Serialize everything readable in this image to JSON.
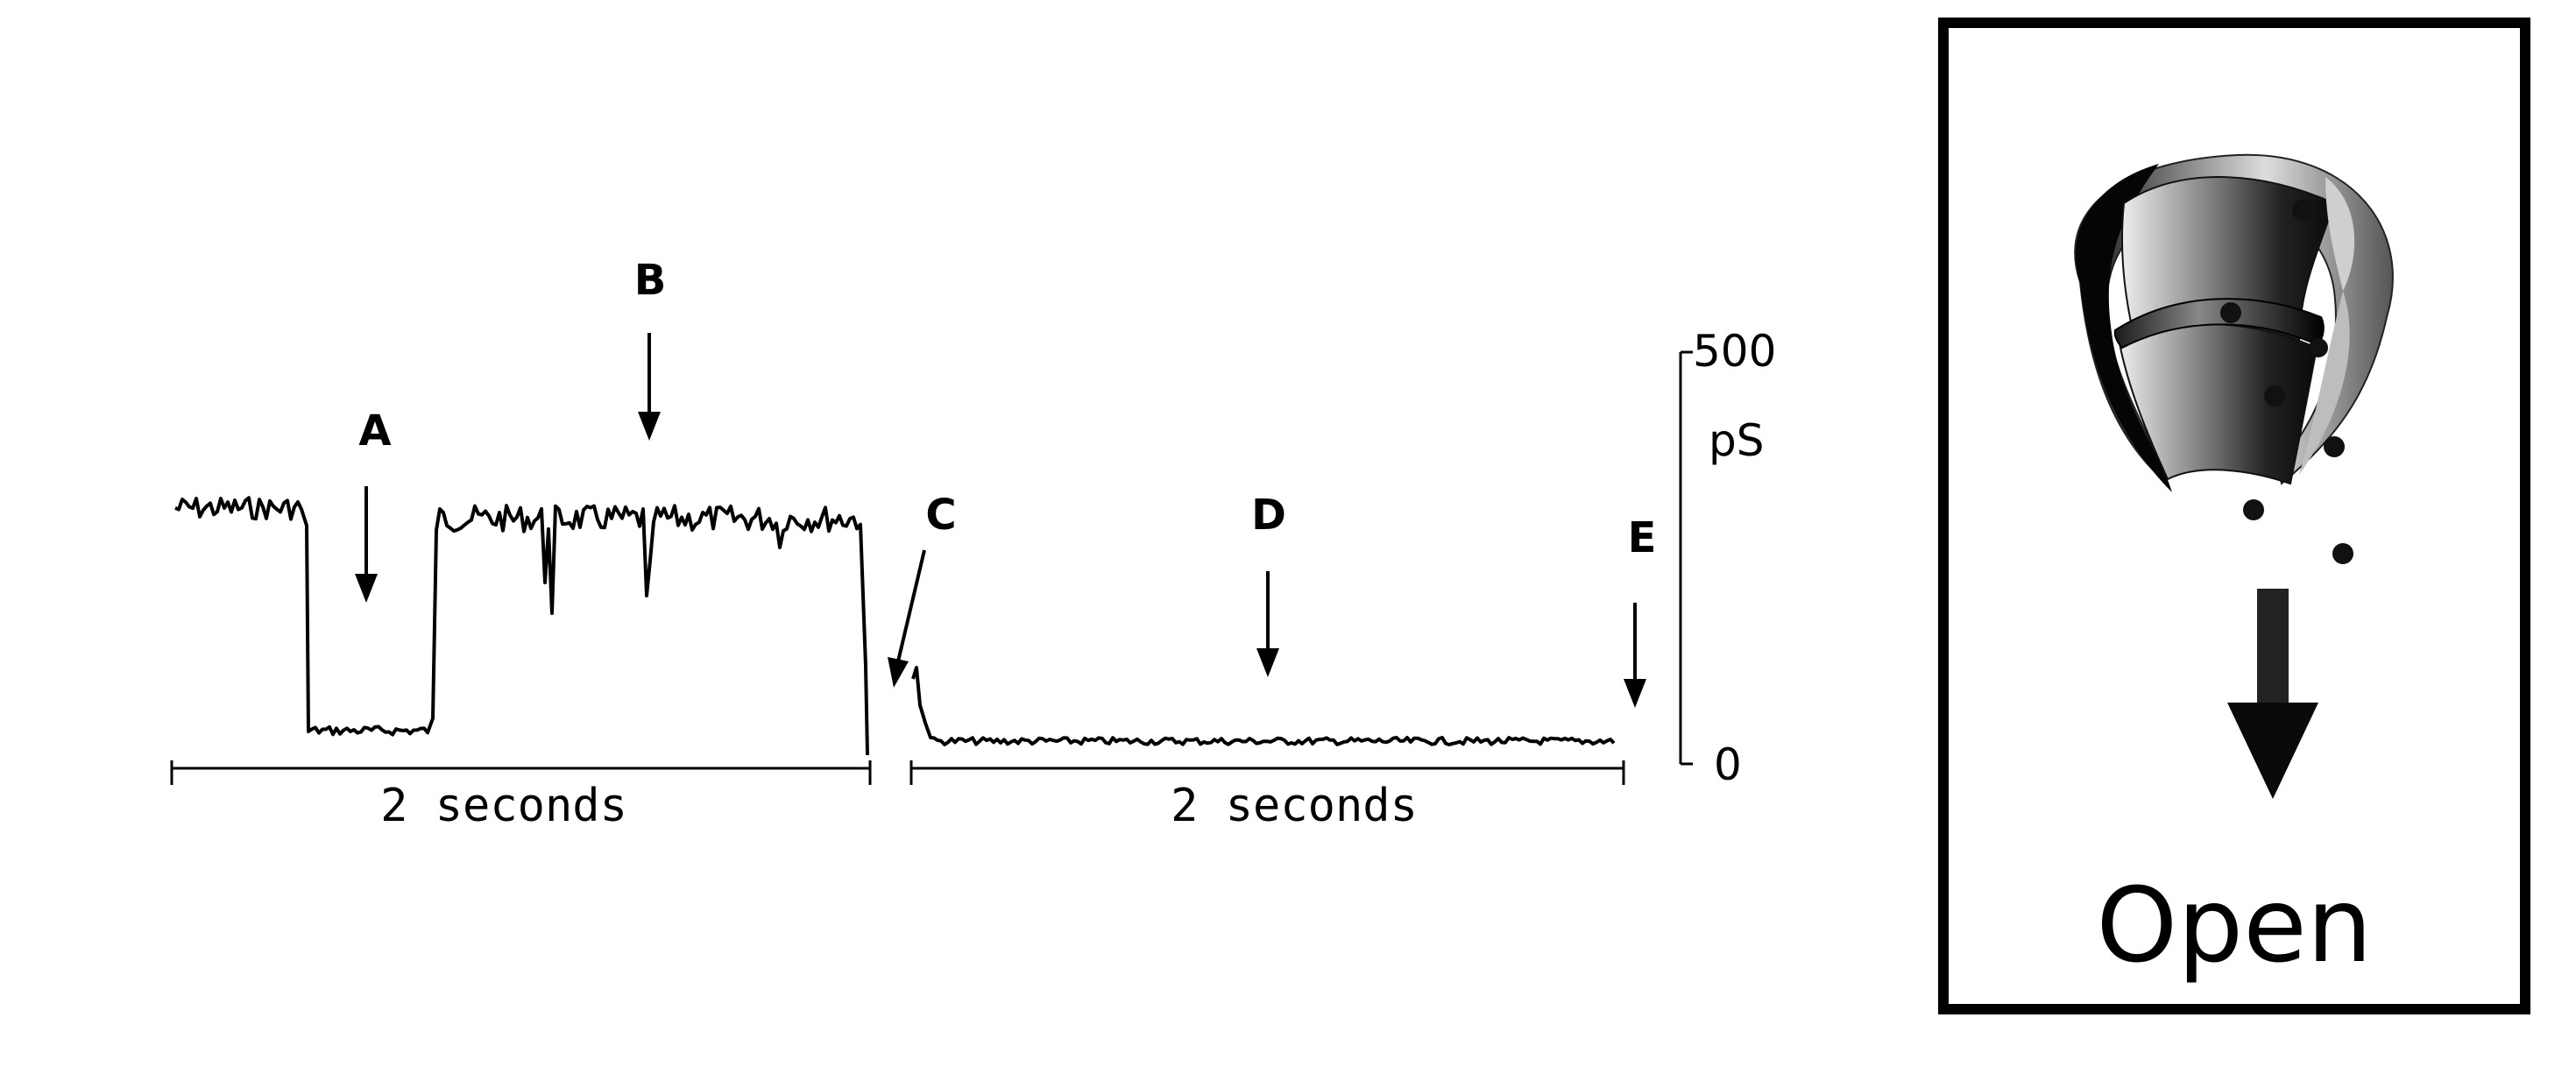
{
  "labels": {
    "a": "A",
    "b": "B",
    "c": "C",
    "d": "D",
    "e": "E"
  },
  "scale": {
    "top": "500",
    "unit": "pS",
    "bottom": "0"
  },
  "durations": {
    "left": "2 seconds",
    "right": "2 seconds"
  },
  "panel": {
    "caption": "Open"
  },
  "colors": {
    "trace": "#000000",
    "background": "#ffffff"
  }
}
